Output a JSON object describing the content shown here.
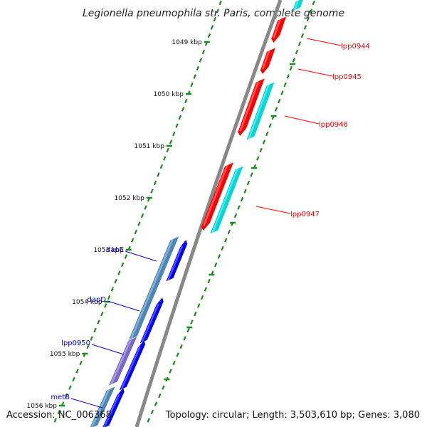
{
  "title": "Legionella pneumophila str. Paris, complete genome",
  "footer": {
    "accession": "Accession: NC_006368",
    "summary": "Topology: circular; Length: 3,503,610 bp; Genes: 3,080"
  },
  "colors": {
    "backbone": "#888888",
    "tick": "#1a8a1a",
    "reverse_cds": "#ff0000",
    "reverse_cds_shadow": "#aa0000",
    "reverse_orf": "#00d8d8",
    "forward_cds": "#0000ff",
    "forward_orf": "#4a86b8",
    "forward_orf_alt": "#7a68c8",
    "reverse_label": "#ff0000",
    "forward_label": "#0000cc"
  },
  "ticks": [
    {
      "kbp": 1049,
      "label": "1049 kbp"
    },
    {
      "kbp": 1050,
      "label": "1050 kbp"
    },
    {
      "kbp": 1051,
      "label": "1051 kbp"
    },
    {
      "kbp": 1052,
      "label": "1052 kbp"
    },
    {
      "kbp": 1053,
      "label": "1053 kbp"
    },
    {
      "kbp": 1054,
      "label": "1054 kbp"
    },
    {
      "kbp": 1055,
      "label": "1055 kbp"
    },
    {
      "kbp": 1056,
      "label": "1056 kbp"
    }
  ],
  "reverse_genes": [
    {
      "name": "lpp0944"
    },
    {
      "name": "lpp0945"
    },
    {
      "name": "lpp0946"
    },
    {
      "name": "lpp0947"
    }
  ],
  "forward_genes": [
    {
      "name": "dapE"
    },
    {
      "name": "dapD"
    },
    {
      "name": "lpp0950"
    },
    {
      "name": "metB"
    }
  ]
}
